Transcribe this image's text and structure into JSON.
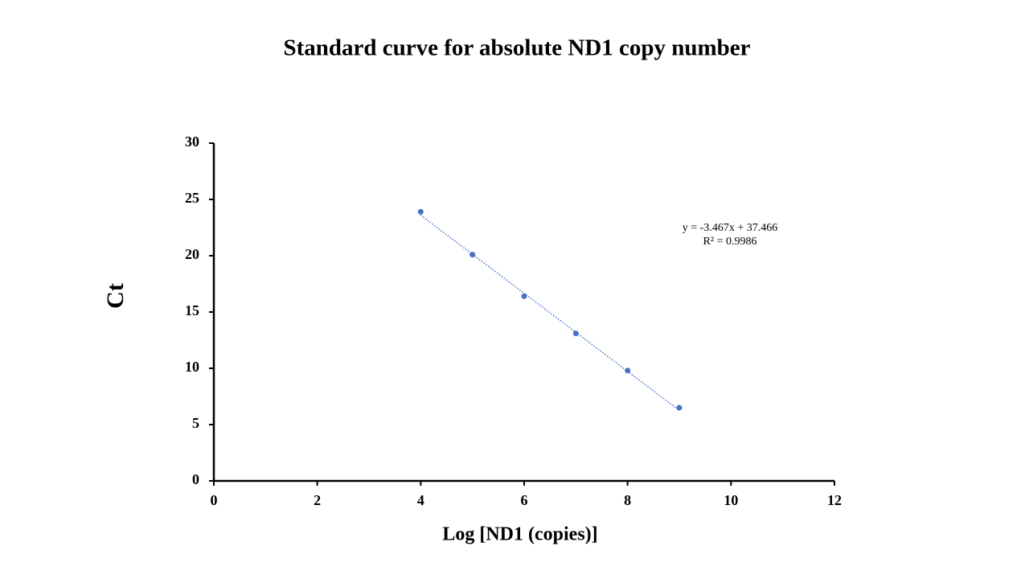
{
  "chart_data": {
    "type": "scatter",
    "title": "Standard curve for absolute ND1 copy number",
    "x_label": "Log [ND1 (copies)]",
    "y_label": "Ct",
    "series": [
      {
        "x": [
          4,
          5,
          6,
          7,
          8,
          9
        ],
        "values": [
          23.9,
          20.1,
          16.4,
          13.1,
          9.8,
          6.5
        ],
        "color": "#4472c4"
      }
    ],
    "trendline": {
      "equation": "y = -3.467x + 37.466",
      "r_squared": "R² = 0.9986",
      "slope": -3.467,
      "intercept": 37.466,
      "color": "#4472c4"
    },
    "xlim": [
      0,
      12
    ],
    "xticks": [
      0,
      2,
      4,
      6,
      8,
      10,
      12
    ],
    "ylim": [
      0,
      30
    ],
    "yticks": [
      0,
      5,
      10,
      15,
      20,
      25,
      30
    ],
    "grid": false
  }
}
